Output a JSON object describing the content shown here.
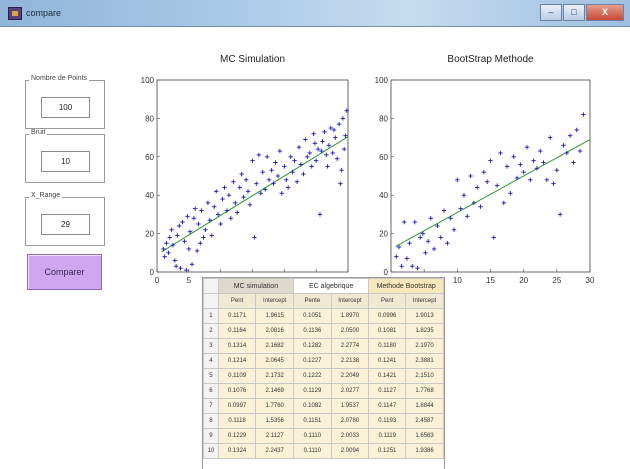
{
  "window": {
    "title": "compare",
    "buttons": [
      "–",
      "□",
      "X"
    ]
  },
  "params": [
    {
      "label": "Nombre de Points",
      "value": "100"
    },
    {
      "label": "Bruit",
      "value": "10"
    },
    {
      "label": "X_Range",
      "value": "29"
    }
  ],
  "compare_button": "Comparer",
  "table": {
    "groups": [
      "MC simulation",
      "EC algebrique",
      "Methode Bootstrap"
    ],
    "subheaders": [
      "Pent",
      "Intercept",
      "Pente",
      "Intercept",
      "Pent",
      "Intercept"
    ],
    "rows": [
      [
        "1",
        "0.1171",
        "1.9615",
        "0.1051",
        "1.8970",
        "0.0996",
        "1.9013"
      ],
      [
        "2",
        "0.1164",
        "2.0816",
        "0.1136",
        "2.0500",
        "0.1081",
        "1.8235"
      ],
      [
        "3",
        "0.1314",
        "2.1682",
        "0.1282",
        "2.2774",
        "0.1180",
        "2.1970"
      ],
      [
        "4",
        "0.1214",
        "2.0645",
        "0.1227",
        "2.2138",
        "0.1241",
        "2.3881"
      ],
      [
        "5",
        "0.1109",
        "2.1732",
        "0.1222",
        "2.2049",
        "0.1421",
        "2.1510"
      ],
      [
        "6",
        "0.1076",
        "2.1469",
        "0.1129",
        "2.0277",
        "0.1127",
        "1.7768"
      ],
      [
        "7",
        "0.0997",
        "1.7760",
        "0.1082",
        "1.9537",
        "0.1147",
        "1.8844"
      ],
      [
        "8",
        "0.1118",
        "1.5356",
        "0.1151",
        "2.0780",
        "0.1193",
        "2.4587"
      ],
      [
        "9",
        "0.1229",
        "2.1127",
        "0.1110",
        "2.0033",
        "0.1119",
        "1.6563"
      ],
      [
        "10",
        "0.1324",
        "2.2437",
        "0.1110",
        "2.0094",
        "0.1251",
        "1.9386"
      ]
    ]
  },
  "chart_data": [
    {
      "type": "scatter",
      "title": "MC Simulation",
      "xlim": [
        0,
        30
      ],
      "ylim": [
        0,
        100
      ],
      "xticks": [
        0,
        5,
        10,
        15,
        20,
        25,
        30
      ],
      "yticks": [
        0,
        20,
        40,
        60,
        80,
        100
      ],
      "marker": "+",
      "marker_color": "#1a1ab8",
      "fit_color": "#2f9a2f",
      "fit": {
        "slope": 2.05,
        "intercept": 9
      },
      "points": [
        [
          1.0,
          12
        ],
        [
          1.2,
          8
        ],
        [
          1.5,
          15
        ],
        [
          1.8,
          10
        ],
        [
          2.0,
          18
        ],
        [
          2.3,
          22
        ],
        [
          2.5,
          14
        ],
        [
          2.8,
          6
        ],
        [
          3.0,
          3
        ],
        [
          3.2,
          19
        ],
        [
          3.5,
          24
        ],
        [
          3.7,
          2
        ],
        [
          4.0,
          26
        ],
        [
          4.3,
          16
        ],
        [
          4.6,
          1
        ],
        [
          4.8,
          29
        ],
        [
          5.0,
          12
        ],
        [
          5.2,
          21
        ],
        [
          5.5,
          4
        ],
        [
          5.8,
          28
        ],
        [
          6.0,
          33
        ],
        [
          6.3,
          11
        ],
        [
          6.5,
          25
        ],
        [
          6.8,
          15
        ],
        [
          7.0,
          32
        ],
        [
          7.3,
          18
        ],
        [
          7.6,
          22
        ],
        [
          8.0,
          36
        ],
        [
          8.3,
          27
        ],
        [
          8.6,
          19
        ],
        [
          9.0,
          34
        ],
        [
          9.3,
          42
        ],
        [
          9.6,
          30
        ],
        [
          10.0,
          25
        ],
        [
          10.3,
          38
        ],
        [
          10.6,
          44
        ],
        [
          11.0,
          32
        ],
        [
          11.3,
          40
        ],
        [
          11.6,
          28
        ],
        [
          12.0,
          47
        ],
        [
          12.3,
          36
        ],
        [
          12.6,
          31
        ],
        [
          13.0,
          44
        ],
        [
          13.3,
          51
        ],
        [
          13.6,
          39
        ],
        [
          14.0,
          48
        ],
        [
          14.3,
          42
        ],
        [
          14.6,
          35
        ],
        [
          15.0,
          58
        ],
        [
          15.3,
          18
        ],
        [
          15.6,
          46
        ],
        [
          16.0,
          61
        ],
        [
          16.3,
          41
        ],
        [
          16.6,
          52
        ],
        [
          17.0,
          43
        ],
        [
          17.3,
          60
        ],
        [
          17.6,
          48
        ],
        [
          18.0,
          53
        ],
        [
          18.3,
          46
        ],
        [
          18.6,
          57
        ],
        [
          19.0,
          50
        ],
        [
          19.3,
          63
        ],
        [
          19.6,
          41
        ],
        [
          20.0,
          55
        ],
        [
          20.3,
          48
        ],
        [
          20.6,
          44
        ],
        [
          21.0,
          60
        ],
        [
          21.3,
          52
        ],
        [
          21.6,
          58
        ],
        [
          22.0,
          47
        ],
        [
          22.3,
          65
        ],
        [
          22.6,
          56
        ],
        [
          23.0,
          51
        ],
        [
          23.3,
          69
        ],
        [
          23.6,
          60
        ],
        [
          24.0,
          62
        ],
        [
          24.3,
          55
        ],
        [
          24.6,
          72
        ],
        [
          25.0,
          58
        ],
        [
          25.3,
          64
        ],
        [
          25.6,
          30
        ],
        [
          26.0,
          68
        ],
        [
          26.3,
          73
        ],
        [
          26.6,
          61
        ],
        [
          27.0,
          66
        ],
        [
          27.3,
          75
        ],
        [
          27.6,
          62
        ],
        [
          28.0,
          70
        ],
        [
          28.3,
          59
        ],
        [
          28.6,
          77
        ],
        [
          29.0,
          53
        ],
        [
          29.2,
          80
        ],
        [
          29.4,
          64
        ],
        [
          29.6,
          71
        ],
        [
          29.8,
          84
        ],
        [
          28.8,
          46
        ],
        [
          27.8,
          74
        ],
        [
          26.8,
          55
        ],
        [
          25.8,
          63
        ],
        [
          24.8,
          67
        ]
      ]
    },
    {
      "type": "scatter",
      "title": "BootStrap Methode",
      "xlim": [
        0,
        30
      ],
      "ylim": [
        0,
        100
      ],
      "xticks": [
        0,
        5,
        10,
        15,
        20,
        25,
        30
      ],
      "yticks": [
        0,
        20,
        40,
        60,
        80,
        100
      ],
      "marker": "+",
      "marker_color": "#1a1ab8",
      "fit_color": "#2f9a2f",
      "fit": {
        "slope": 1.9,
        "intercept": 12
      },
      "points": [
        [
          0.8,
          8
        ],
        [
          1.2,
          13
        ],
        [
          1.6,
          3
        ],
        [
          2.0,
          26
        ],
        [
          2.4,
          7
        ],
        [
          2.8,
          15
        ],
        [
          3.2,
          3
        ],
        [
          3.6,
          26
        ],
        [
          4.0,
          2
        ],
        [
          4.4,
          18
        ],
        [
          4.8,
          20
        ],
        [
          5.2,
          10
        ],
        [
          5.6,
          16
        ],
        [
          6.0,
          28
        ],
        [
          6.5,
          12
        ],
        [
          7.0,
          24
        ],
        [
          7.5,
          18
        ],
        [
          8.0,
          32
        ],
        [
          8.5,
          15
        ],
        [
          9.0,
          28
        ],
        [
          9.5,
          22
        ],
        [
          10.0,
          48
        ],
        [
          10.5,
          33
        ],
        [
          11.0,
          40
        ],
        [
          11.5,
          29
        ],
        [
          12.0,
          50
        ],
        [
          12.5,
          36
        ],
        [
          13.0,
          44
        ],
        [
          13.5,
          34
        ],
        [
          14.0,
          52
        ],
        [
          14.5,
          47
        ],
        [
          15.0,
          58
        ],
        [
          15.5,
          18
        ],
        [
          16.0,
          45
        ],
        [
          16.5,
          62
        ],
        [
          17.0,
          36
        ],
        [
          17.5,
          55
        ],
        [
          18.0,
          41
        ],
        [
          18.5,
          60
        ],
        [
          19.0,
          49
        ],
        [
          19.5,
          56
        ],
        [
          20.0,
          52
        ],
        [
          20.5,
          65
        ],
        [
          21.0,
          48
        ],
        [
          21.5,
          58
        ],
        [
          22.0,
          54
        ],
        [
          22.5,
          63
        ],
        [
          23.0,
          57
        ],
        [
          23.5,
          48
        ],
        [
          24.0,
          70
        ],
        [
          24.5,
          46
        ],
        [
          25.0,
          53
        ],
        [
          25.5,
          30
        ],
        [
          26.0,
          66
        ],
        [
          26.5,
          62
        ],
        [
          27.0,
          71
        ],
        [
          27.5,
          57
        ],
        [
          28.0,
          74
        ],
        [
          28.5,
          63
        ],
        [
          29.0,
          82
        ]
      ]
    }
  ]
}
